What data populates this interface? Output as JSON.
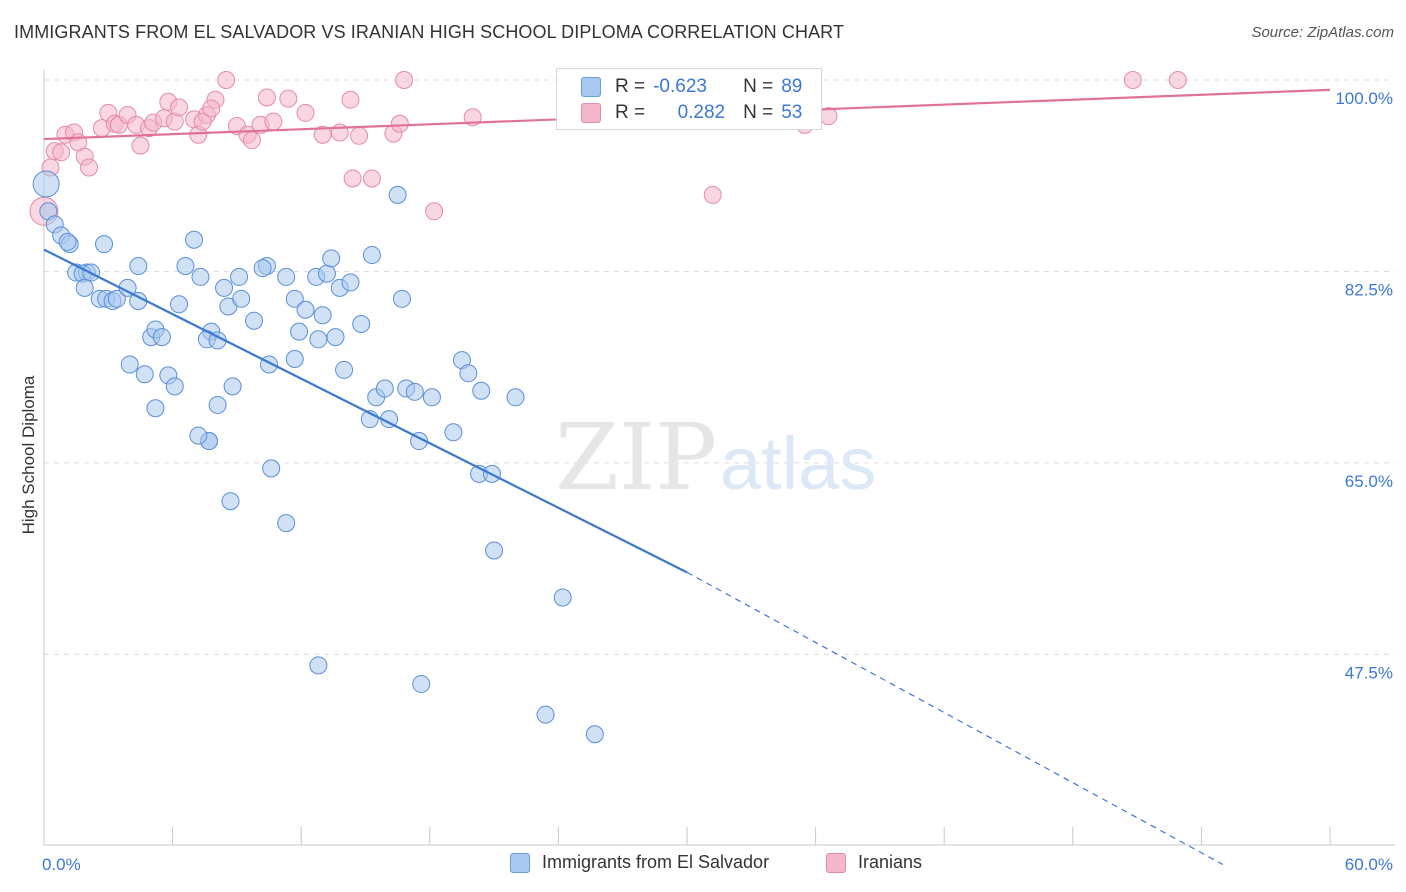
{
  "header": {
    "title": "IMMIGRANTS FROM EL SALVADOR VS IRANIAN HIGH SCHOOL DIPLOMA CORRELATION CHART",
    "source": "Source: ZipAtlas.com"
  },
  "watermark": {
    "zip": "ZIP",
    "atlas": "atlas"
  },
  "legend_top": {
    "r_label": "R =",
    "n_label": "N =",
    "rows": [
      {
        "r": "-0.623",
        "n": "89"
      },
      {
        "r": "0.282",
        "n": "53"
      }
    ]
  },
  "chart_data": {
    "type": "scatter",
    "title": "IMMIGRANTS FROM EL SALVADOR VS IRANIAN HIGH SCHOOL DIPLOMA CORRELATION CHART",
    "xlabel": "",
    "ylabel": "High School Diploma",
    "xlim": [
      0,
      60
    ],
    "ylim": [
      28,
      102
    ],
    "x_tick_labels": [
      "0.0%",
      "60.0%"
    ],
    "y_ticks": [
      47.5,
      65.0,
      82.5,
      100.0
    ],
    "y_tick_labels": [
      "47.5%",
      "65.0%",
      "82.5%",
      "100.0%"
    ],
    "grid": true,
    "colors": {
      "blue": "#3b78d4",
      "blue_fill": "#a9c8ef",
      "pink": "#e0729a",
      "pink_fill": "#f4b6cb"
    },
    "series": [
      {
        "name": "Immigrants from El Salvador",
        "r": -0.623,
        "n": 89,
        "trend": {
          "x0": 0,
          "y0": 84.5,
          "x1": 30,
          "y1": 55.0,
          "dash_to_x": 55,
          "dash_to_y": 28.3
        },
        "points": [
          [
            0.1,
            90.5
          ],
          [
            0.2,
            88.0
          ],
          [
            0.5,
            86.8
          ],
          [
            0.8,
            85.8
          ],
          [
            1.2,
            85.0
          ],
          [
            1.1,
            85.2
          ],
          [
            2.8,
            85.0
          ],
          [
            1.5,
            82.4
          ],
          [
            2.0,
            82.4
          ],
          [
            1.8,
            82.3
          ],
          [
            2.2,
            82.4
          ],
          [
            1.9,
            81.0
          ],
          [
            2.6,
            80.0
          ],
          [
            2.9,
            80.0
          ],
          [
            3.2,
            79.8
          ],
          [
            3.4,
            80.0
          ],
          [
            3.9,
            81.0
          ],
          [
            4.4,
            83.0
          ],
          [
            4.4,
            79.8
          ],
          [
            5.0,
            76.5
          ],
          [
            5.2,
            77.2
          ],
          [
            5.5,
            76.5
          ],
          [
            4.0,
            74.0
          ],
          [
            4.7,
            73.1
          ],
          [
            5.2,
            70.0
          ],
          [
            5.8,
            73.0
          ],
          [
            6.1,
            72.0
          ],
          [
            6.6,
            83.0
          ],
          [
            6.3,
            79.5
          ],
          [
            7.0,
            85.4
          ],
          [
            7.3,
            82.0
          ],
          [
            7.8,
            77.0
          ],
          [
            7.6,
            76.3
          ],
          [
            8.1,
            76.2
          ],
          [
            8.4,
            81.0
          ],
          [
            8.6,
            79.3
          ],
          [
            8.8,
            72.0
          ],
          [
            8.1,
            70.3
          ],
          [
            7.7,
            67.0
          ],
          [
            7.7,
            67.0
          ],
          [
            9.1,
            82.0
          ],
          [
            9.2,
            80.0
          ],
          [
            9.8,
            78.0
          ],
          [
            10.4,
            83.0
          ],
          [
            10.2,
            82.8
          ],
          [
            10.5,
            74.0
          ],
          [
            11.3,
            82.0
          ],
          [
            11.7,
            80.0
          ],
          [
            12.2,
            79.0
          ],
          [
            11.9,
            77.0
          ],
          [
            12.7,
            82.0
          ],
          [
            13.2,
            82.3
          ],
          [
            13.4,
            83.7
          ],
          [
            13.8,
            81.0
          ],
          [
            13.0,
            78.5
          ],
          [
            12.8,
            76.3
          ],
          [
            11.7,
            74.5
          ],
          [
            14.3,
            81.5
          ],
          [
            14.8,
            77.7
          ],
          [
            15.3,
            84.0
          ],
          [
            13.6,
            76.5
          ],
          [
            14.0,
            73.5
          ],
          [
            15.2,
            69.0
          ],
          [
            15.5,
            71.0
          ],
          [
            16.1,
            69.0
          ],
          [
            16.7,
            80.0
          ],
          [
            16.5,
            89.5
          ],
          [
            15.9,
            71.8
          ],
          [
            16.9,
            71.8
          ],
          [
            17.3,
            71.5
          ],
          [
            17.5,
            67.0
          ],
          [
            18.1,
            71.0
          ],
          [
            19.1,
            67.8
          ],
          [
            19.5,
            74.4
          ],
          [
            19.8,
            73.2
          ],
          [
            20.4,
            71.6
          ],
          [
            20.3,
            64.0
          ],
          [
            20.9,
            64.0
          ],
          [
            21.0,
            57.0
          ],
          [
            22.0,
            71.0
          ],
          [
            10.6,
            64.5
          ],
          [
            11.3,
            59.5
          ],
          [
            8.7,
            61.5
          ],
          [
            7.2,
            67.5
          ],
          [
            24.2,
            52.7
          ],
          [
            12.8,
            46.5
          ],
          [
            17.6,
            44.8
          ],
          [
            23.4,
            42.0
          ],
          [
            25.7,
            40.2
          ]
        ]
      },
      {
        "name": "Iranians",
        "r": 0.282,
        "n": 53,
        "trend": {
          "x0": 0,
          "y0": 94.6,
          "x1": 60,
          "y1": 99.1
        },
        "points": [
          [
            0.0,
            88.0
          ],
          [
            0.3,
            92.0
          ],
          [
            0.5,
            93.5
          ],
          [
            0.8,
            93.4
          ],
          [
            1.0,
            95.0
          ],
          [
            1.4,
            95.2
          ],
          [
            1.6,
            94.3
          ],
          [
            1.9,
            93.0
          ],
          [
            2.1,
            92.0
          ],
          [
            2.7,
            95.6
          ],
          [
            3.0,
            97.0
          ],
          [
            3.3,
            96.0
          ],
          [
            3.5,
            95.9
          ],
          [
            3.9,
            96.8
          ],
          [
            4.3,
            95.9
          ],
          [
            4.5,
            94.0
          ],
          [
            4.9,
            95.6
          ],
          [
            5.1,
            96.1
          ],
          [
            5.6,
            96.5
          ],
          [
            6.1,
            96.2
          ],
          [
            5.8,
            98.0
          ],
          [
            6.3,
            97.5
          ],
          [
            7.0,
            96.4
          ],
          [
            7.2,
            95.0
          ],
          [
            7.6,
            96.8
          ],
          [
            7.4,
            96.2
          ],
          [
            8.0,
            98.2
          ],
          [
            7.8,
            97.4
          ],
          [
            8.5,
            100.0
          ],
          [
            9.0,
            95.8
          ],
          [
            9.5,
            95.0
          ],
          [
            9.7,
            94.5
          ],
          [
            10.1,
            95.9
          ],
          [
            10.4,
            98.4
          ],
          [
            10.7,
            96.2
          ],
          [
            11.4,
            98.3
          ],
          [
            12.2,
            97.0
          ],
          [
            13.0,
            95.0
          ],
          [
            13.8,
            95.2
          ],
          [
            14.3,
            98.2
          ],
          [
            14.7,
            94.9
          ],
          [
            14.4,
            91.0
          ],
          [
            15.3,
            91.0
          ],
          [
            16.3,
            95.1
          ],
          [
            16.6,
            96.0
          ],
          [
            16.8,
            100.0
          ],
          [
            18.2,
            88.0
          ],
          [
            20.0,
            96.6
          ],
          [
            31.2,
            89.5
          ],
          [
            35.5,
            95.9
          ],
          [
            36.6,
            96.7
          ],
          [
            50.8,
            100.0
          ],
          [
            52.9,
            100.0
          ]
        ]
      }
    ]
  },
  "legend_bottom": {
    "items": [
      {
        "label": "Immigrants from El Salvador"
      },
      {
        "label": "Iranians"
      }
    ]
  }
}
